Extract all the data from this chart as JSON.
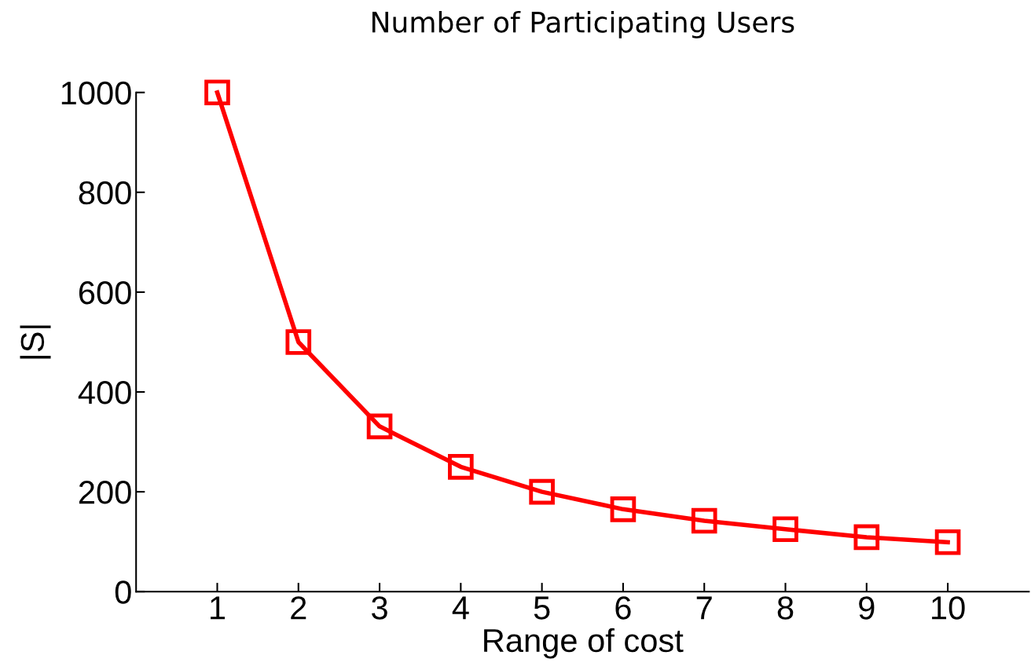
{
  "chart_data": {
    "type": "line",
    "title": "Number of Participating Users",
    "xlabel": "Range of cost",
    "ylabel": "|S|",
    "x": [
      1,
      2,
      3,
      4,
      5,
      6,
      7,
      8,
      9,
      10
    ],
    "series": [
      {
        "color": "#ff0000",
        "values": [
          1000,
          500,
          331,
          250,
          200,
          165,
          142,
          125,
          109,
          99
        ]
      }
    ],
    "xlim": [
      0,
      11
    ],
    "ylim": [
      0,
      1000
    ],
    "xticks": [
      1,
      2,
      3,
      4,
      5,
      6,
      7,
      8,
      9,
      10
    ],
    "yticks": [
      0,
      200,
      400,
      600,
      800,
      1000
    ],
    "marker": "square",
    "line_style": "solid",
    "grid": false,
    "legend": false
  }
}
